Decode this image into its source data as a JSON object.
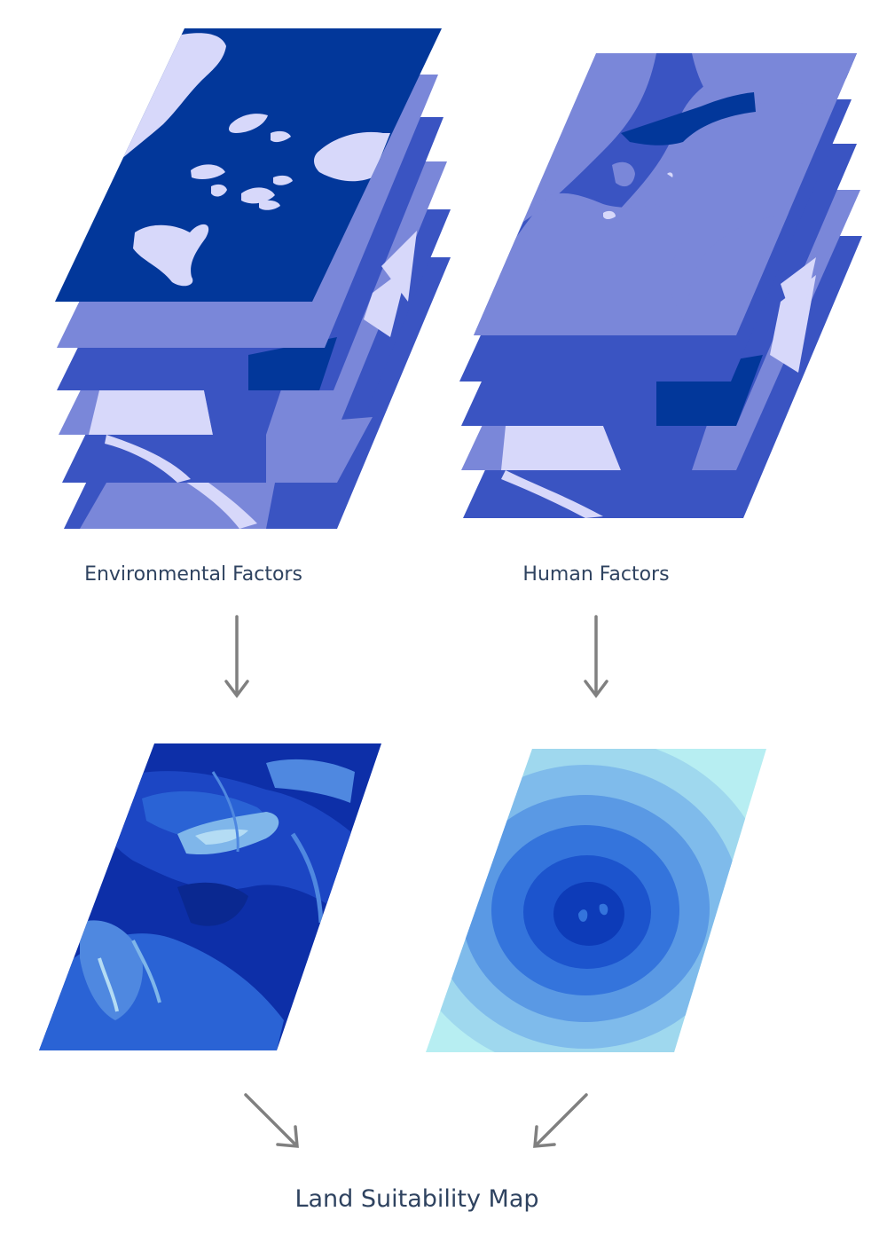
{
  "labels": {
    "environmental": "Environmental Factors",
    "human": "Human Factors",
    "result": "Land Suitability Map"
  },
  "colors": {
    "navy": "#02379a",
    "royal": "#3a54c2",
    "periwinkle": "#7a87d9",
    "lavender": "#d7d8fa",
    "arrow": "#808080",
    "text": "#2f4360",
    "suitability_env_shades": [
      "#0d2fa8",
      "#1c46c4",
      "#2a63d5",
      "#4f88e0",
      "#7fb6ea",
      "#b4dcf4"
    ],
    "suitability_human_shades": [
      "#b7eef2",
      "#9fd8ee",
      "#7fbbeb",
      "#5a99e4",
      "#3474dc",
      "#1c54cd",
      "#0d3bb8"
    ]
  },
  "layer_stacks": {
    "environmental_layers": 6,
    "human_layers": 5
  }
}
